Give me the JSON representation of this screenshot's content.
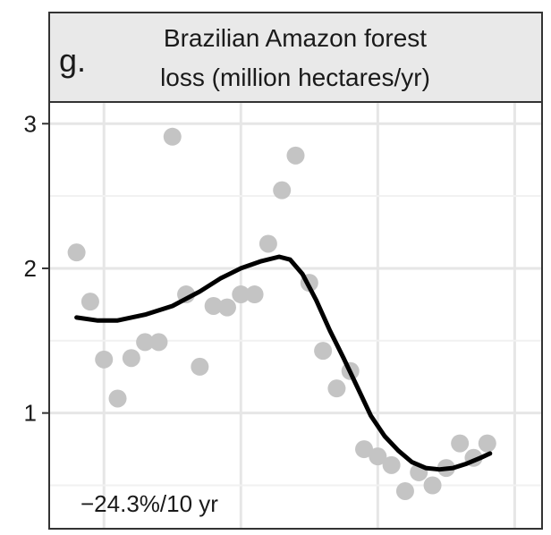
{
  "chart_data": {
    "type": "scatter",
    "panel_label": "g.",
    "title_line1": "Brazilian Amazon forest",
    "title_line2": "loss (million hectares/yr)",
    "annotation": "−24.3%/10 yr",
    "xlim": [
      1986,
      2022
    ],
    "ylim": [
      0.2,
      3.15
    ],
    "y_ticks": [
      1,
      2,
      3
    ],
    "y_tick_labels": [
      "1",
      "2",
      "3"
    ],
    "x_grid": [
      1990,
      2000,
      2010,
      2020
    ],
    "grid": true,
    "colors": {
      "points": "#c4c4c4",
      "trend": "#000000",
      "grid": "#e6e6e6",
      "strip": "#e9e9e9",
      "border": "#333333"
    },
    "points": [
      {
        "x": 1988,
        "y": 2.11
      },
      {
        "x": 1989,
        "y": 1.77
      },
      {
        "x": 1990,
        "y": 1.37
      },
      {
        "x": 1991,
        "y": 1.1
      },
      {
        "x": 1992,
        "y": 1.38
      },
      {
        "x": 1993,
        "y": 1.49
      },
      {
        "x": 1994,
        "y": 1.49
      },
      {
        "x": 1995,
        "y": 2.91
      },
      {
        "x": 1996,
        "y": 1.82
      },
      {
        "x": 1997,
        "y": 1.32
      },
      {
        "x": 1998,
        "y": 1.74
      },
      {
        "x": 1999,
        "y": 1.73
      },
      {
        "x": 2000,
        "y": 1.82
      },
      {
        "x": 2001,
        "y": 1.82
      },
      {
        "x": 2002,
        "y": 2.17
      },
      {
        "x": 2003,
        "y": 2.54
      },
      {
        "x": 2004,
        "y": 2.78
      },
      {
        "x": 2005,
        "y": 1.9
      },
      {
        "x": 2006,
        "y": 1.43
      },
      {
        "x": 2007,
        "y": 1.17
      },
      {
        "x": 2008,
        "y": 1.29
      },
      {
        "x": 2009,
        "y": 0.75
      },
      {
        "x": 2010,
        "y": 0.7
      },
      {
        "x": 2011,
        "y": 0.64
      },
      {
        "x": 2012,
        "y": 0.46
      },
      {
        "x": 2013,
        "y": 0.59
      },
      {
        "x": 2014,
        "y": 0.5
      },
      {
        "x": 2015,
        "y": 0.62
      },
      {
        "x": 2016,
        "y": 0.79
      },
      {
        "x": 2017,
        "y": 0.69
      },
      {
        "x": 2018,
        "y": 0.79
      }
    ],
    "trend": [
      {
        "x": 1988,
        "y": 1.66
      },
      {
        "x": 1989.5,
        "y": 1.64
      },
      {
        "x": 1991,
        "y": 1.64
      },
      {
        "x": 1993,
        "y": 1.68
      },
      {
        "x": 1995,
        "y": 1.74
      },
      {
        "x": 1997,
        "y": 1.84
      },
      {
        "x": 1998.5,
        "y": 1.93
      },
      {
        "x": 2000,
        "y": 2.0
      },
      {
        "x": 2001.5,
        "y": 2.05
      },
      {
        "x": 2002.8,
        "y": 2.08
      },
      {
        "x": 2003.6,
        "y": 2.06
      },
      {
        "x": 2004.5,
        "y": 1.96
      },
      {
        "x": 2005.5,
        "y": 1.78
      },
      {
        "x": 2006.5,
        "y": 1.57
      },
      {
        "x": 2007.5,
        "y": 1.38
      },
      {
        "x": 2008.5,
        "y": 1.18
      },
      {
        "x": 2009.5,
        "y": 0.98
      },
      {
        "x": 2010.5,
        "y": 0.84
      },
      {
        "x": 2011.5,
        "y": 0.74
      },
      {
        "x": 2012.5,
        "y": 0.66
      },
      {
        "x": 2013.5,
        "y": 0.62
      },
      {
        "x": 2014.5,
        "y": 0.61
      },
      {
        "x": 2015.5,
        "y": 0.62
      },
      {
        "x": 2016.5,
        "y": 0.65
      },
      {
        "x": 2017.5,
        "y": 0.69
      },
      {
        "x": 2018.2,
        "y": 0.72
      }
    ]
  }
}
